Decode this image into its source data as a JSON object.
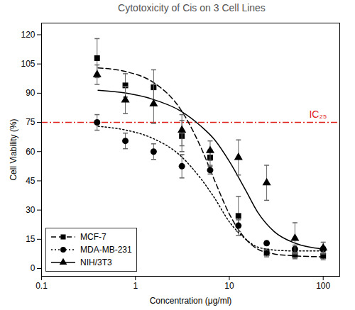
{
  "chart_data": {
    "type": "scatter",
    "title": "Cytotoxicity of Cis on 3 Cell Lines",
    "x_label": "Concentration (μg/ml)",
    "y_label": "Cell Viability (%)",
    "log": "x",
    "grid": false,
    "legend": "lower left",
    "xlim": [
      0.1,
      150
    ],
    "xticks": [
      0.1,
      1,
      10,
      100
    ],
    "ylim": [
      -4,
      126
    ],
    "yticks": [
      0,
      15,
      30,
      45,
      60,
      75,
      90,
      105,
      120
    ],
    "x": [
      0.390625,
      0.78125,
      1.5625,
      3.125,
      6.25,
      12.5,
      25,
      50,
      100
    ],
    "series": [
      {
        "name": "MCF-7",
        "color": "#000000",
        "marker": "square",
        "line_style": "dashed",
        "values": [
          108,
          94,
          93,
          68,
          57,
          27,
          8,
          7,
          6.5
        ],
        "errors": [
          10,
          6,
          9,
          8,
          4,
          10,
          2,
          2,
          2
        ],
        "fit_x": [
          0.4,
          0.8,
          1.5,
          3,
          5,
          7,
          10,
          15,
          20,
          30,
          50,
          100
        ],
        "fit_values": [
          103,
          101,
          96,
          82,
          62,
          45,
          28,
          15,
          10,
          7.5,
          6.5,
          6
        ]
      },
      {
        "name": "MDA-MB-231",
        "color": "#000000",
        "marker": "circle",
        "line_style": "dotted",
        "values": [
          75,
          65.5,
          60,
          52.5,
          50.5,
          22,
          13,
          10,
          10
        ],
        "errors": [
          4,
          4,
          4,
          6,
          2,
          3,
          1,
          2,
          1
        ],
        "fit_x": [
          0.4,
          0.8,
          1.5,
          3,
          5,
          7,
          10,
          15,
          20,
          30,
          50,
          100
        ],
        "fit_values": [
          73,
          71,
          67,
          58,
          46,
          36,
          24,
          15,
          11,
          9.5,
          9,
          9
        ]
      },
      {
        "name": "NIH/3T3",
        "color": "#000000",
        "marker": "triangle",
        "line_style": "solid",
        "values": [
          99.5,
          86.5,
          84.5,
          71,
          60.5,
          57,
          44,
          15.5,
          10.5
        ],
        "errors": [
          5,
          7,
          10,
          8,
          5,
          9,
          9,
          8,
          3
        ],
        "fit_x": [
          0.4,
          0.8,
          1.5,
          3,
          5,
          7,
          10,
          15,
          20,
          30,
          50,
          100
        ],
        "fit_values": [
          91.5,
          90,
          87,
          81,
          73,
          66,
          55,
          40,
          29,
          19,
          13,
          10
        ]
      }
    ],
    "reference_lines": [
      {
        "label": "IC₂₅",
        "y": 75,
        "color": "#e0201b",
        "line_style": "dashdot"
      }
    ]
  }
}
